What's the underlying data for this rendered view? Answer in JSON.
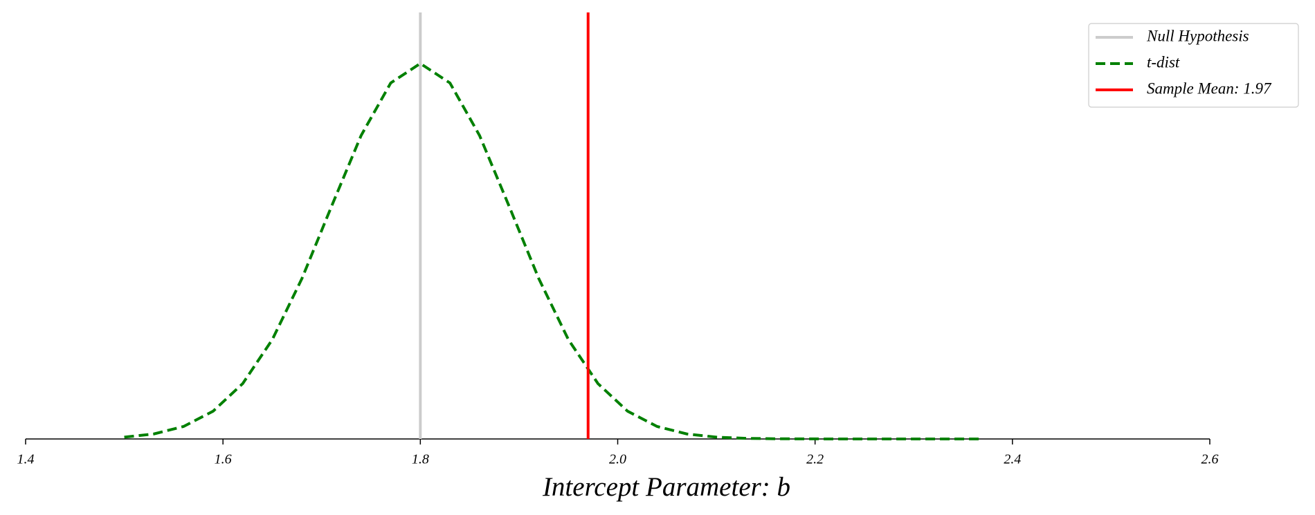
{
  "chart_data": {
    "type": "line",
    "x_label": "Intercept Parameter: b",
    "x": [
      1.5,
      1.53,
      1.56,
      1.59,
      1.62,
      1.65,
      1.68,
      1.71,
      1.74,
      1.77,
      1.8,
      1.83,
      1.86,
      1.89,
      1.92,
      1.95,
      1.98,
      2.01,
      2.04,
      2.07,
      2.1,
      2.13,
      2.16,
      2.19,
      2.22,
      2.25,
      2.28,
      2.31,
      2.34,
      2.37
    ],
    "series": [
      {
        "name": "Null Hypothesis",
        "color": "#cccccc",
        "style": "solid",
        "xline": 1.8
      },
      {
        "name": "t-dist",
        "color": "#008000",
        "style": "dashed",
        "values": [
          0.021,
          0.058,
          0.144,
          0.321,
          0.64,
          1.149,
          1.854,
          2.689,
          3.508,
          4.115,
          4.34,
          4.115,
          3.508,
          2.689,
          1.854,
          1.149,
          0.64,
          0.321,
          0.144,
          0.058,
          0.021,
          0.007,
          0.002,
          0.001,
          0,
          0,
          0,
          0,
          0,
          0
        ]
      },
      {
        "name": "Sample Mean: 1.97",
        "color": "#ff0000",
        "style": "solid",
        "xline": 1.97
      }
    ],
    "xlim": [
      1.4,
      2.6
    ],
    "ylim": [
      0,
      4.93
    ],
    "xticks": [
      {
        "value": 1.4,
        "label": "1.4"
      },
      {
        "value": 1.6,
        "label": "1.6"
      },
      {
        "value": 1.8,
        "label": "1.8"
      },
      {
        "value": 2.0,
        "label": "2.0"
      },
      {
        "value": 2.2,
        "label": "2.2"
      },
      {
        "value": 2.4,
        "label": "2.4"
      },
      {
        "value": 2.6,
        "label": "2.6"
      }
    ],
    "legend": "upper right"
  }
}
